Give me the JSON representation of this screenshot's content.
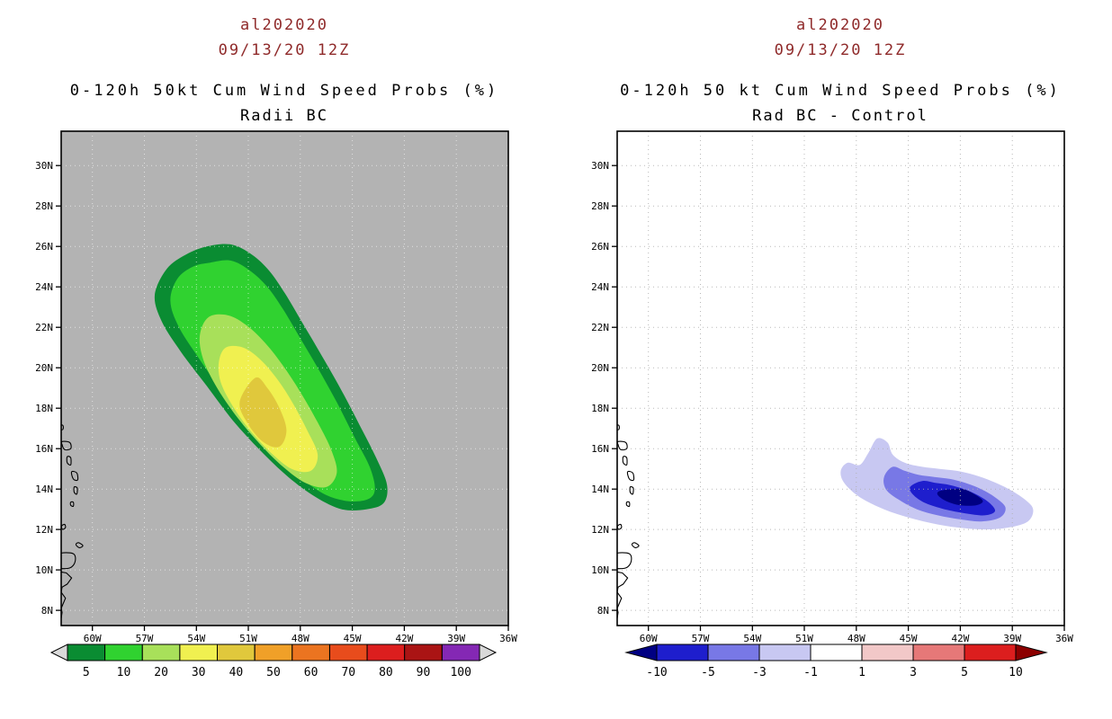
{
  "page": {
    "background": "#ffffff"
  },
  "coastline": {
    "islands": [
      [
        [
          61.9,
          10.8
        ],
        [
          61.1,
          10.8
        ],
        [
          61.0,
          10.4
        ],
        [
          61.3,
          10.1
        ],
        [
          61.9,
          10.1
        ],
        [
          61.8,
          10.4
        ]
      ],
      [
        [
          60.8,
          11.35
        ],
        [
          60.55,
          11.2
        ],
        [
          60.75,
          11.1
        ],
        [
          60.95,
          11.25
        ]
      ],
      [
        [
          61.75,
          12.2
        ],
        [
          61.6,
          12.25
        ],
        [
          61.55,
          12.1
        ],
        [
          61.7,
          12.0
        ],
        [
          61.78,
          12.1
        ]
      ],
      [
        [
          61.25,
          13.35
        ],
        [
          61.1,
          13.35
        ],
        [
          61.1,
          13.15
        ],
        [
          61.25,
          13.2
        ]
      ],
      [
        [
          61.05,
          14.1
        ],
        [
          60.87,
          14.05
        ],
        [
          60.9,
          13.75
        ],
        [
          61.05,
          13.85
        ]
      ],
      [
        [
          61.2,
          14.85
        ],
        [
          60.9,
          14.8
        ],
        [
          60.85,
          14.45
        ],
        [
          61.1,
          14.5
        ]
      ],
      [
        [
          61.45,
          15.6
        ],
        [
          61.25,
          15.55
        ],
        [
          61.25,
          15.2
        ],
        [
          61.45,
          15.3
        ]
      ],
      [
        [
          61.75,
          16.35
        ],
        [
          61.3,
          16.3
        ],
        [
          61.25,
          16.0
        ],
        [
          61.6,
          15.95
        ],
        [
          61.75,
          16.2
        ]
      ],
      [
        [
          61.9,
          17.15
        ],
        [
          61.7,
          17.15
        ],
        [
          61.7,
          16.95
        ],
        [
          61.9,
          16.95
        ]
      ]
    ],
    "lines": [
      [
        [
          61.8,
          9.9
        ],
        [
          61.5,
          9.85
        ],
        [
          61.2,
          9.6
        ],
        [
          61.45,
          9.3
        ],
        [
          61.75,
          9.15
        ],
        [
          61.8,
          8.9
        ],
        [
          61.55,
          8.6
        ],
        [
          61.7,
          8.3
        ],
        [
          61.8,
          8.1
        ],
        [
          61.75,
          7.9
        ],
        [
          61.8,
          7.6
        ]
      ]
    ]
  },
  "chart_data": [
    {
      "type": "filled_contour_map",
      "title_line1": "al202020",
      "title_line2": "09/13/20 12Z",
      "subtitle_line1": "0-120h 50kt Cum Wind Speed Probs (%)",
      "subtitle_line2": "Radii BC",
      "units": "%",
      "map_bg": "#b3b3b3",
      "grid_color": "#ffffff",
      "grid_opacity": 0.6,
      "axes": {
        "lon_range_w": [
          61.8,
          36.0
        ],
        "lat_range": [
          7.25,
          31.7
        ],
        "lon_ticks_w": [
          60,
          57,
          54,
          51,
          48,
          45,
          42,
          39,
          36
        ],
        "lon_tick_labels": [
          "60W",
          "57W",
          "54W",
          "51W",
          "48W",
          "45W",
          "42W",
          "39W",
          "36W"
        ],
        "lat_ticks": [
          30,
          28,
          26,
          24,
          22,
          20,
          18,
          16,
          14,
          12,
          10,
          8
        ],
        "lat_tick_labels": [
          "30N",
          "28N",
          "26N",
          "24N",
          "22N",
          "20N",
          "18N",
          "16N",
          "14N",
          "12N",
          "10N",
          "8N"
        ]
      },
      "levels": [
        {
          "value": 5,
          "color": "#0a8c32",
          "polygon": [
            [
              53.4,
              26.0
            ],
            [
              52.0,
              26.1
            ],
            [
              50.8,
              25.6
            ],
            [
              49.8,
              24.8
            ],
            [
              48.9,
              23.7
            ],
            [
              48.0,
              22.4
            ],
            [
              46.9,
              20.8
            ],
            [
              45.7,
              19.0
            ],
            [
              44.6,
              17.2
            ],
            [
              43.6,
              15.5
            ],
            [
              43.0,
              14.2
            ],
            [
              43.2,
              13.3
            ],
            [
              44.2,
              13.0
            ],
            [
              45.6,
              13.0
            ],
            [
              47.1,
              13.6
            ],
            [
              48.7,
              14.6
            ],
            [
              50.3,
              15.9
            ],
            [
              51.9,
              17.4
            ],
            [
              53.4,
              19.1
            ],
            [
              54.9,
              20.8
            ],
            [
              56.0,
              22.3
            ],
            [
              56.4,
              23.6
            ],
            [
              55.7,
              24.9
            ],
            [
              54.6,
              25.6
            ]
          ]
        },
        {
          "value": 10,
          "color": "#30d230",
          "polygon": [
            [
              53.2,
              25.2
            ],
            [
              52.0,
              25.3
            ],
            [
              50.9,
              24.8
            ],
            [
              49.9,
              24.0
            ],
            [
              49.0,
              22.9
            ],
            [
              48.1,
              21.6
            ],
            [
              47.0,
              20.0
            ],
            [
              45.9,
              18.3
            ],
            [
              44.9,
              16.6
            ],
            [
              44.0,
              15.1
            ],
            [
              43.7,
              14.0
            ],
            [
              44.1,
              13.5
            ],
            [
              45.2,
              13.4
            ],
            [
              46.5,
              13.7
            ],
            [
              47.9,
              14.5
            ],
            [
              49.4,
              15.7
            ],
            [
              50.9,
              17.1
            ],
            [
              52.4,
              18.7
            ],
            [
              53.8,
              20.4
            ],
            [
              55.0,
              22.0
            ],
            [
              55.5,
              23.3
            ],
            [
              55.1,
              24.4
            ],
            [
              54.2,
              25.0
            ]
          ]
        },
        {
          "value": 20,
          "color": "#a8e05a",
          "polygon": [
            [
              53.3,
              22.5
            ],
            [
              52.2,
              22.6
            ],
            [
              51.1,
              22.1
            ],
            [
              50.0,
              21.2
            ],
            [
              49.0,
              20.1
            ],
            [
              48.0,
              18.8
            ],
            [
              47.0,
              17.3
            ],
            [
              46.2,
              15.9
            ],
            [
              45.9,
              14.8
            ],
            [
              46.5,
              14.1
            ],
            [
              47.7,
              14.3
            ],
            [
              49.0,
              15.1
            ],
            [
              50.3,
              16.2
            ],
            [
              51.6,
              17.5
            ],
            [
              52.8,
              19.0
            ],
            [
              53.6,
              20.4
            ],
            [
              53.8,
              21.6
            ]
          ]
        },
        {
          "value": 30,
          "color": "#f0f050",
          "polygon": [
            [
              52.3,
              21.0
            ],
            [
              51.3,
              21.0
            ],
            [
              50.3,
              20.4
            ],
            [
              49.3,
              19.4
            ],
            [
              48.4,
              18.2
            ],
            [
              47.6,
              16.9
            ],
            [
              47.0,
              15.7
            ],
            [
              47.4,
              14.9
            ],
            [
              48.5,
              15.0
            ],
            [
              49.7,
              15.8
            ],
            [
              50.9,
              16.9
            ],
            [
              51.9,
              18.1
            ],
            [
              52.6,
              19.3
            ],
            [
              52.7,
              20.3
            ]
          ]
        },
        {
          "value": 40,
          "color": "#e0c83c",
          "polygon": [
            [
              50.6,
              19.5
            ],
            [
              49.9,
              19.0
            ],
            [
              49.2,
              18.0
            ],
            [
              48.8,
              16.9
            ],
            [
              49.2,
              16.1
            ],
            [
              50.1,
              16.3
            ],
            [
              51.0,
              17.2
            ],
            [
              51.5,
              18.3
            ]
          ]
        }
      ],
      "colorbar": {
        "style": "blocks",
        "values": [
          5,
          10,
          20,
          30,
          40,
          50,
          60,
          70,
          80,
          90,
          100
        ],
        "labels": [
          "5",
          "10",
          "20",
          "30",
          "40",
          "50",
          "60",
          "70",
          "80",
          "90",
          "100"
        ],
        "colors": [
          "#0a8c32",
          "#30d230",
          "#a8e05a",
          "#f0f050",
          "#e0c83c",
          "#f0a028",
          "#eb7420",
          "#e84c1c",
          "#dc1e1e",
          "#aa1414",
          "#8428b4"
        ],
        "left_arrow_color": "#d9d9d9",
        "right_arrow_color": "#d9d9d9"
      }
    },
    {
      "type": "filled_contour_map_difference",
      "title_line1": "al202020",
      "title_line2": "09/13/20 12Z",
      "subtitle_line1": "0-120h 50 kt Cum Wind Speed Probs (%)",
      "subtitle_line2": "Rad BC - Control",
      "units": "%",
      "map_bg": "#ffffff",
      "grid_color": "#b0b0b0",
      "grid_opacity": 0.9,
      "axes": {
        "lon_range_w": [
          61.8,
          36.0
        ],
        "lat_range": [
          7.25,
          31.7
        ],
        "lon_ticks_w": [
          60,
          57,
          54,
          51,
          48,
          45,
          42,
          39,
          36
        ],
        "lon_tick_labels": [
          "60W",
          "57W",
          "54W",
          "51W",
          "48W",
          "45W",
          "42W",
          "39W",
          "36W"
        ],
        "lat_ticks": [
          30,
          28,
          26,
          24,
          22,
          20,
          18,
          16,
          14,
          12,
          10,
          8
        ],
        "lat_tick_labels": [
          "30N",
          "28N",
          "26N",
          "24N",
          "22N",
          "20N",
          "18N",
          "16N",
          "14N",
          "12N",
          "10N",
          "8N"
        ]
      },
      "levels": [
        {
          "value": -1,
          "color": "#c8c8f2",
          "polygon": [
            [
              48.9,
              14.9
            ],
            [
              48.5,
              15.3
            ],
            [
              47.8,
              15.2
            ],
            [
              47.3,
              15.8
            ],
            [
              46.8,
              16.5
            ],
            [
              46.2,
              16.3
            ],
            [
              45.9,
              15.7
            ],
            [
              45.2,
              15.3
            ],
            [
              44.2,
              15.1
            ],
            [
              43.2,
              15.0
            ],
            [
              42.2,
              14.9
            ],
            [
              41.2,
              14.7
            ],
            [
              40.2,
              14.4
            ],
            [
              39.2,
              14.0
            ],
            [
              38.3,
              13.5
            ],
            [
              37.8,
              13.0
            ],
            [
              38.1,
              12.4
            ],
            [
              39.2,
              12.1
            ],
            [
              40.6,
              12.0
            ],
            [
              42.2,
              12.1
            ],
            [
              43.6,
              12.3
            ],
            [
              45.0,
              12.6
            ],
            [
              46.4,
              13.0
            ],
            [
              47.8,
              13.6
            ],
            [
              48.7,
              14.3
            ]
          ]
        },
        {
          "value": -3,
          "color": "#7878e6",
          "polygon": [
            [
              46.4,
              14.6
            ],
            [
              45.9,
              15.1
            ],
            [
              45.2,
              14.9
            ],
            [
              44.4,
              14.7
            ],
            [
              43.5,
              14.6
            ],
            [
              42.6,
              14.5
            ],
            [
              41.7,
              14.3
            ],
            [
              40.8,
              14.0
            ],
            [
              40.0,
              13.6
            ],
            [
              39.4,
              13.1
            ],
            [
              39.7,
              12.6
            ],
            [
              40.8,
              12.4
            ],
            [
              42.0,
              12.5
            ],
            [
              43.3,
              12.7
            ],
            [
              44.5,
              13.0
            ],
            [
              45.6,
              13.5
            ],
            [
              46.3,
              14.0
            ]
          ]
        },
        {
          "value": -5,
          "color": "#1e1ecd",
          "polygon": [
            [
              44.9,
              14.1
            ],
            [
              44.2,
              14.4
            ],
            [
              43.4,
              14.3
            ],
            [
              42.6,
              14.2
            ],
            [
              41.8,
              14.0
            ],
            [
              41.0,
              13.7
            ],
            [
              40.3,
              13.3
            ],
            [
              40.0,
              12.9
            ],
            [
              40.6,
              12.7
            ],
            [
              41.7,
              12.8
            ],
            [
              42.9,
              13.0
            ],
            [
              44.0,
              13.3
            ],
            [
              44.7,
              13.7
            ]
          ]
        },
        {
          "value": -10,
          "color": "#000082",
          "polygon": [
            [
              43.2,
              13.9
            ],
            [
              42.5,
              14.0
            ],
            [
              41.8,
              14.0
            ],
            [
              41.1,
              13.7
            ],
            [
              40.7,
              13.4
            ],
            [
              41.1,
              13.2
            ],
            [
              42.0,
              13.2
            ],
            [
              42.8,
              13.4
            ],
            [
              43.3,
              13.7
            ]
          ]
        }
      ],
      "colorbar": {
        "style": "boundaries",
        "values": [
          -10,
          -5,
          -3,
          -1,
          1,
          3,
          5,
          10
        ],
        "labels": [
          "-10",
          "-5",
          "-3",
          "-1",
          "1",
          "3",
          "5",
          "10"
        ],
        "colors": [
          "#1e1ecd",
          "#7878e6",
          "#c8c8f2",
          "#ffffff",
          "#f2c8c8",
          "#e67878",
          "#dc1e1e"
        ],
        "left_arrow_color": "#000082",
        "right_arrow_color": "#8c0000"
      }
    }
  ]
}
